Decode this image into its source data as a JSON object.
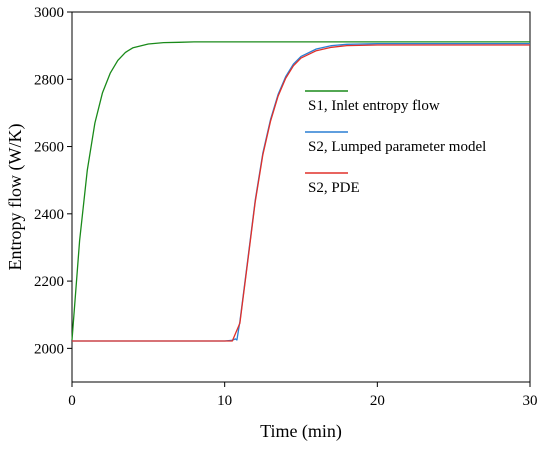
{
  "chart_data": {
    "type": "line",
    "xlabel": "Time (min)",
    "ylabel": "Entropy flow (W/K)",
    "xlim": [
      0,
      30
    ],
    "ylim": [
      1900,
      3000
    ],
    "x_ticks": [
      0,
      10,
      20,
      30
    ],
    "x_tick_labels": [
      "0",
      "10",
      "20",
      "30"
    ],
    "y_ticks": [
      2000,
      2200,
      2400,
      2600,
      2800,
      3000
    ],
    "y_tick_labels": [
      "2000",
      "2200",
      "2400",
      "2600",
      "2800",
      "3000"
    ],
    "grid": false,
    "legend_position": "center-right",
    "series": [
      {
        "name": "S1, Inlet entropy flow",
        "color": "#1a8a1a",
        "x": [
          0,
          0.5,
          1,
          1.5,
          2,
          2.5,
          3,
          3.5,
          4,
          5,
          6,
          7,
          8,
          10,
          15,
          20,
          25,
          30
        ],
        "y": [
          2025,
          2320,
          2530,
          2670,
          2760,
          2818,
          2856,
          2880,
          2894,
          2905,
          2909,
          2910,
          2911,
          2911,
          2911,
          2911,
          2911,
          2911
        ]
      },
      {
        "name": "S2, Lumped parameter model",
        "color": "#2a7fd4",
        "x": [
          0,
          5,
          10,
          10.5,
          10.7,
          10.8,
          11,
          11.5,
          12,
          12.5,
          13,
          13.5,
          14,
          14.5,
          15,
          16,
          17,
          18,
          20,
          25,
          30
        ],
        "y": [
          2022,
          2022,
          2022,
          2024,
          2028,
          2025,
          2080,
          2260,
          2440,
          2580,
          2680,
          2755,
          2808,
          2845,
          2868,
          2890,
          2900,
          2904,
          2906,
          2906,
          2906
        ]
      },
      {
        "name": "S2, PDE",
        "color": "#e0302a",
        "x": [
          0,
          5,
          10,
          10.5,
          11,
          11.5,
          12,
          12.5,
          13,
          13.5,
          14,
          14.5,
          15,
          16,
          17,
          18,
          20,
          25,
          30
        ],
        "y": [
          2022,
          2022,
          2022,
          2022,
          2075,
          2255,
          2435,
          2575,
          2675,
          2750,
          2803,
          2840,
          2863,
          2885,
          2895,
          2900,
          2902,
          2902,
          2902
        ]
      }
    ]
  }
}
